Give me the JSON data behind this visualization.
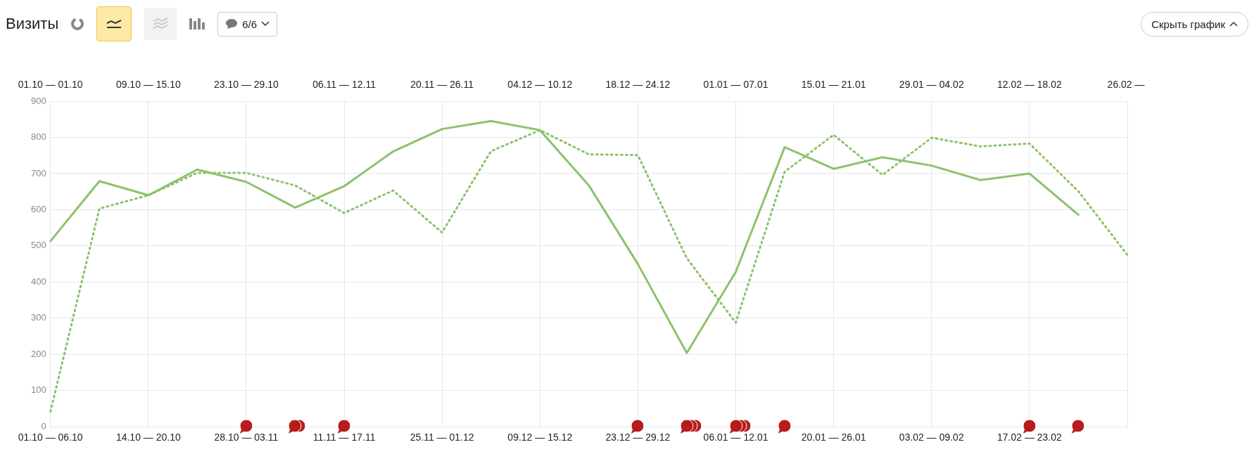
{
  "chart_data": {
    "type": "line",
    "title": "Визиты",
    "categories": [
      "01.10 — 06.10",
      null,
      "14.10 — 20.10",
      null,
      "28.10 — 03.11",
      null,
      "11.11 — 17.11",
      null,
      "25.11 — 01.12",
      null,
      "09.12 — 15.12",
      null,
      "23.12 — 29.12",
      null,
      "06.01 — 12.01",
      null,
      "20.01 — 26.01",
      null,
      "03.02 — 09.02",
      null,
      "17.02 — 23.02",
      null,
      null
    ],
    "series": [
      {
        "color": "#8dc26a",
        "line_style": "solid",
        "values": [
          513,
          679,
          640,
          711,
          677,
          606,
          665,
          761,
          823,
          845,
          820,
          667,
          450,
          204,
          428,
          773,
          713,
          745,
          722,
          682,
          700,
          586,
          null
        ]
      },
      {
        "color": "#8dc26a",
        "line_style": "dotted",
        "values": [
          42,
          603,
          640,
          702,
          702,
          667,
          591,
          653,
          537,
          762,
          820,
          753,
          751,
          466,
          288,
          705,
          807,
          696,
          799,
          775,
          783,
          651,
          475
        ]
      }
    ],
    "ylim": [
      0,
      900
    ],
    "yticks": [
      0,
      100,
      200,
      300,
      400,
      500,
      600,
      700,
      800,
      900
    ],
    "grid": true,
    "legend": false,
    "marker": "none",
    "annotations": [
      "01.10 — 01.10",
      "09.10 — 15.10",
      "23.10 — 29.10",
      "06.11 — 12.11",
      "20.11 — 26.11",
      "04.12 — 10.12",
      "18.12 — 24.12",
      "01.01 — 07.01",
      "15.01 — 21.01",
      "29.01 — 04.02",
      "12.02 — 18.02",
      "26.02 — ",
      "6/6",
      "Скрыть график"
    ]
  }
}
